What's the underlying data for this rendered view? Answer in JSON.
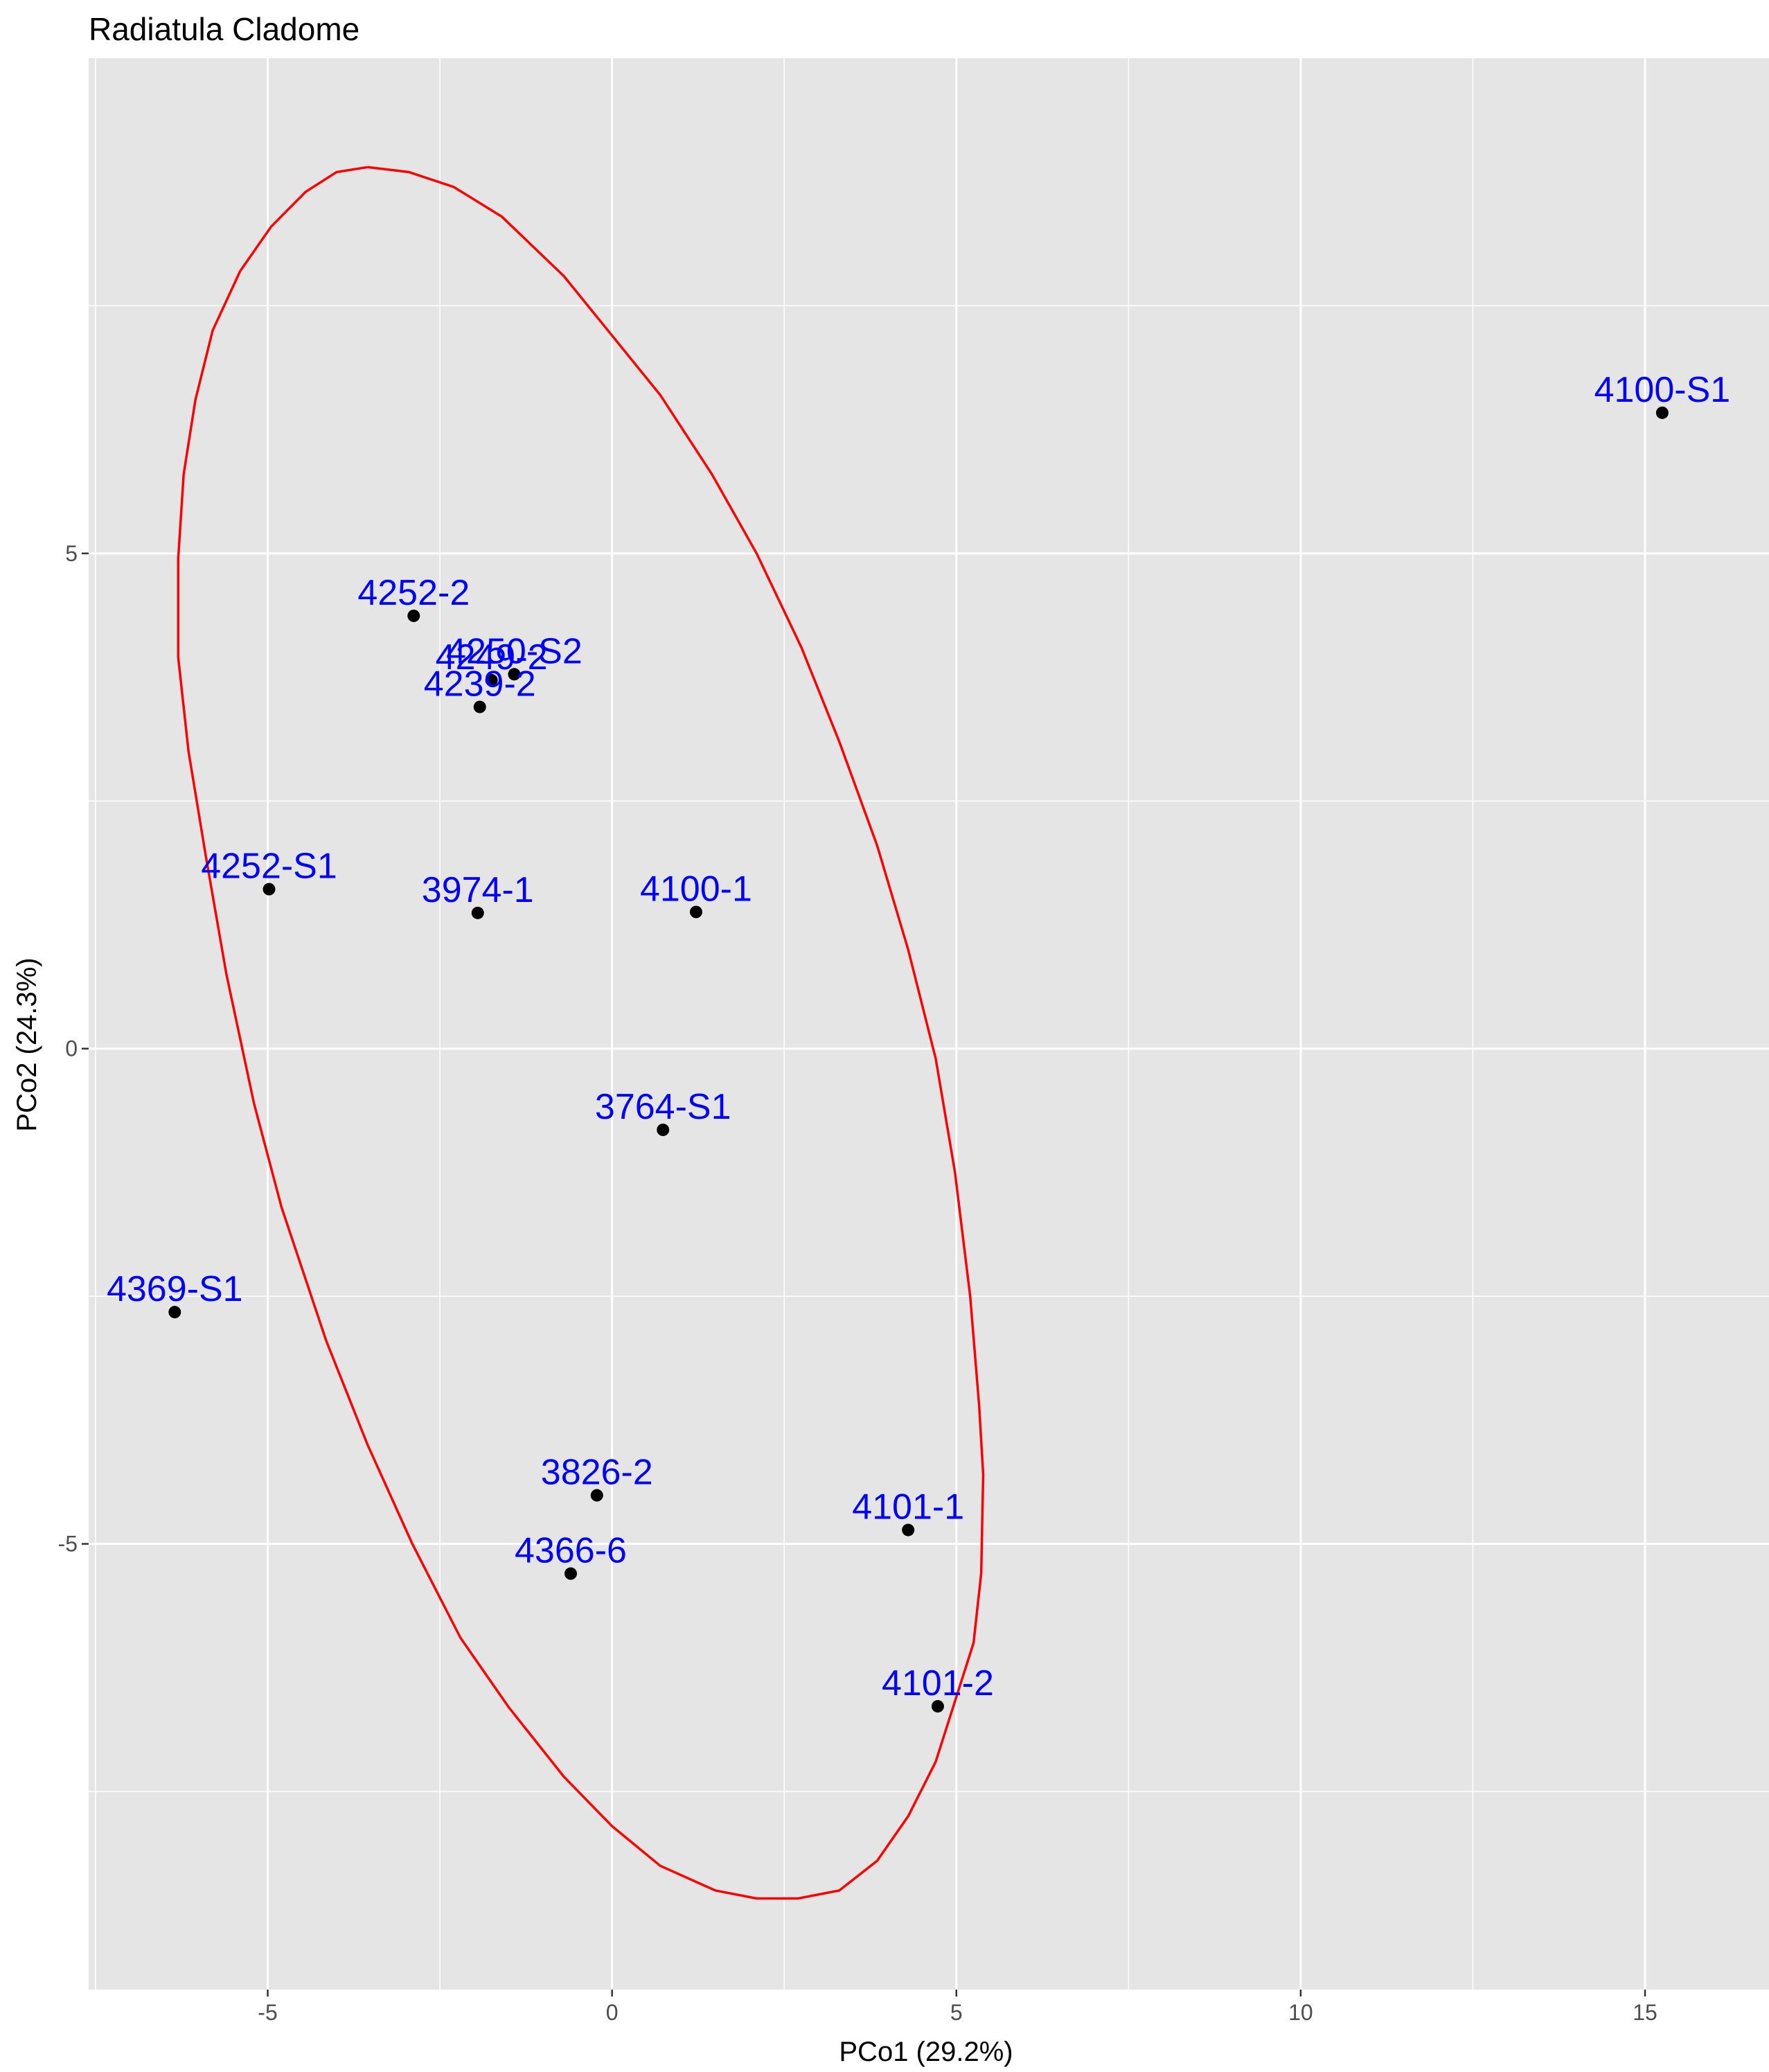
{
  "chart_data": {
    "type": "scatter",
    "title": "Radiatula Cladome",
    "xlabel": "PCo1 (29.2%)",
    "ylabel": "PCo2 (24.3%)",
    "xlim": [
      -7.6,
      16.8
    ],
    "ylim": [
      -9.5,
      10.0
    ],
    "x_ticks": [
      -5,
      0,
      5,
      10,
      15
    ],
    "y_ticks": [
      -5,
      0,
      5
    ],
    "x_tick_labels": [
      "-5",
      "0",
      "5",
      "10",
      "15"
    ],
    "y_tick_labels": [
      "-5",
      "0",
      "5"
    ],
    "grid": true,
    "background": "#e5e5e5",
    "point_color": "#000000",
    "label_color": "#0000ff",
    "ellipse_color": "#ff0000",
    "points": [
      {
        "label": "4100-S1",
        "x": 15.25,
        "y": 6.42
      },
      {
        "label": "4252-2",
        "x": -2.88,
        "y": 4.37
      },
      {
        "label": "4250-S2",
        "x": -1.42,
        "y": 3.78
      },
      {
        "label": "4249-2",
        "x": -1.75,
        "y": 3.72
      },
      {
        "label": "4239-2",
        "x": -1.92,
        "y": 3.45
      },
      {
        "label": "4252-S1",
        "x": -4.98,
        "y": 1.61
      },
      {
        "label": "3974-1",
        "x": -1.95,
        "y": 1.37
      },
      {
        "label": "4100-1",
        "x": 1.22,
        "y": 1.38
      },
      {
        "label": "3764-S1",
        "x": 0.74,
        "y": -0.82
      },
      {
        "label": "4369-S1",
        "x": -6.35,
        "y": -2.66
      },
      {
        "label": "3826-2",
        "x": -0.22,
        "y": -4.51
      },
      {
        "label": "4101-1",
        "x": 4.3,
        "y": -4.86
      },
      {
        "label": "4366-6",
        "x": -0.6,
        "y": -5.3
      },
      {
        "label": "4101-2",
        "x": 4.73,
        "y": -6.64
      }
    ],
    "ellipse": [
      [
        -3.55,
        8.9
      ],
      [
        -2.95,
        8.85
      ],
      [
        -2.3,
        8.7
      ],
      [
        -1.6,
        8.4
      ],
      [
        -0.7,
        7.8
      ],
      [
        0.0,
        7.2
      ],
      [
        0.7,
        6.6
      ],
      [
        1.45,
        5.8
      ],
      [
        2.1,
        5.0
      ],
      [
        2.75,
        4.05
      ],
      [
        3.3,
        3.1
      ],
      [
        3.85,
        2.05
      ],
      [
        4.3,
        1.0
      ],
      [
        4.7,
        -0.1
      ],
      [
        4.98,
        -1.25
      ],
      [
        5.2,
        -2.5
      ],
      [
        5.33,
        -3.6
      ],
      [
        5.39,
        -4.3
      ],
      [
        5.36,
        -5.3
      ],
      [
        5.25,
        -6.0
      ],
      [
        4.7,
        -7.2
      ],
      [
        4.3,
        -7.75
      ],
      [
        3.85,
        -8.2
      ],
      [
        3.3,
        -8.5
      ],
      [
        2.7,
        -8.58
      ],
      [
        2.1,
        -8.58
      ],
      [
        1.5,
        -8.5
      ],
      [
        0.7,
        -8.25
      ],
      [
        0.0,
        -7.85
      ],
      [
        -0.7,
        -7.35
      ],
      [
        -1.5,
        -6.65
      ],
      [
        -2.2,
        -5.95
      ],
      [
        -2.9,
        -5.0
      ],
      [
        -3.55,
        -4.0
      ],
      [
        -4.15,
        -2.95
      ],
      [
        -4.8,
        -1.6
      ],
      [
        -5.2,
        -0.55
      ],
      [
        -5.6,
        0.75
      ],
      [
        -5.9,
        1.95
      ],
      [
        -6.15,
        3.0
      ],
      [
        -6.3,
        3.95
      ],
      [
        -6.3,
        4.95
      ],
      [
        -6.22,
        5.8
      ],
      [
        -6.05,
        6.55
      ],
      [
        -5.8,
        7.25
      ],
      [
        -5.4,
        7.85
      ],
      [
        -4.95,
        8.3
      ],
      [
        -4.45,
        8.65
      ],
      [
        -4.0,
        8.85
      ],
      [
        -3.55,
        8.9
      ]
    ]
  }
}
